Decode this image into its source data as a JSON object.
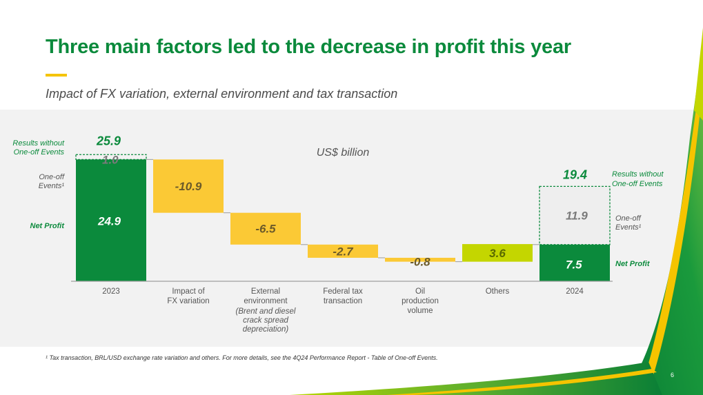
{
  "header": {
    "title": "Three main factors led to the decrease in profit this year",
    "subtitle": "Impact of FX variation, external environment and tax transaction"
  },
  "footnote": "¹ Tax transaction, BRL/USD exchange rate variation and others. For more details, see the 4Q24 Performance Report - Table of One-off Events.",
  "page_number": "6",
  "colors": {
    "brand_green": "#0b8a3c",
    "accent_yellow": "#f5c400",
    "decrease": "#fbc935",
    "increase": "#c4d600",
    "panel_bg": "#f2f2f2"
  },
  "chart_data": {
    "type": "waterfall",
    "unit_label": "US$ billion",
    "ylim": [
      0,
      26.5
    ],
    "categories": [
      [
        "2023"
      ],
      [
        "Impact of",
        "FX variation"
      ],
      [
        "External",
        "environment"
      ],
      [
        "Federal tax",
        "transaction"
      ],
      [
        "Oil",
        "production",
        "volume"
      ],
      [
        "Others"
      ],
      [
        "2024"
      ]
    ],
    "category_note": [
      "(Brent and diesel",
      "crack spread",
      "depreciation)"
    ],
    "category_note_index": 2,
    "start": {
      "net_profit": 24.9,
      "one_off": 1.0,
      "total": 25.9,
      "net_profit_label": "24.9",
      "one_off_label": "1.0",
      "total_label": "25.9"
    },
    "steps": [
      {
        "value": -10.9,
        "label": "-10.9",
        "type": "decrease"
      },
      {
        "value": -6.5,
        "label": "-6.5",
        "type": "decrease"
      },
      {
        "value": -2.7,
        "label": "-2.7",
        "type": "decrease"
      },
      {
        "value": -0.8,
        "label": "-0.8",
        "type": "decrease"
      },
      {
        "value": 3.6,
        "label": "3.6",
        "type": "increase"
      }
    ],
    "end": {
      "net_profit": 7.5,
      "one_off": 11.9,
      "total": 19.4,
      "net_profit_label": "7.5",
      "one_off_label": "11.9",
      "total_label": "19.4"
    },
    "left_labels": {
      "results_without": [
        "Results without",
        "One-off Events"
      ],
      "one_off": [
        "One-off",
        "Events¹"
      ],
      "net_profit": "Net Profit"
    },
    "right_labels": {
      "results_without": [
        "Results without",
        "One-off Events"
      ],
      "one_off": [
        "One-off",
        "Events¹"
      ],
      "net_profit": "Net Profit"
    }
  }
}
